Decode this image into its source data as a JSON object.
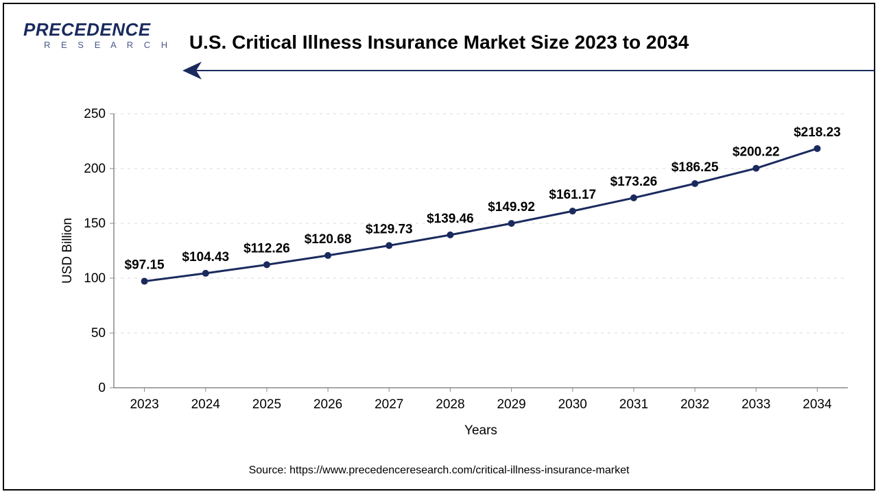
{
  "logo": {
    "text": "PRECEDENCE",
    "sub": "R E S E A R C H"
  },
  "title": "U.S. Critical Illness Insurance Market Size 2023 to 2034",
  "source": "Source: https://www.precedenceresearch.com/critical-illness-insurance-market",
  "chart": {
    "type": "line",
    "categories": [
      "2023",
      "2024",
      "2025",
      "2026",
      "2027",
      "2028",
      "2029",
      "2030",
      "2031",
      "2032",
      "2033",
      "2034"
    ],
    "values": [
      97.15,
      104.43,
      112.26,
      120.68,
      129.73,
      139.46,
      149.92,
      161.17,
      173.26,
      186.25,
      200.22,
      218.23
    ],
    "labels": [
      "$97.15",
      "$104.43",
      "$112.26",
      "$120.68",
      "$129.73",
      "$139.46",
      "$149.92",
      "$161.17",
      "$173.26",
      "$186.25",
      "$200.22",
      "$218.23"
    ],
    "ylim": [
      0,
      250
    ],
    "ytick_step": 50,
    "yticks": [
      0,
      50,
      100,
      150,
      200,
      250
    ],
    "ylabel": "USD Billion",
    "xlabel": "Years",
    "line_color": "#1a2a5e",
    "line_width": 3,
    "marker_color": "#1a2a5e",
    "marker_radius": 5,
    "grid_color": "#d8d8d8",
    "axis_color": "#888888",
    "background_color": "#ffffff",
    "title_fontsize": 28,
    "axis_label_fontsize": 19,
    "tick_fontsize": 19,
    "datalabel_fontsize": 19,
    "datalabel_weight": "700"
  }
}
